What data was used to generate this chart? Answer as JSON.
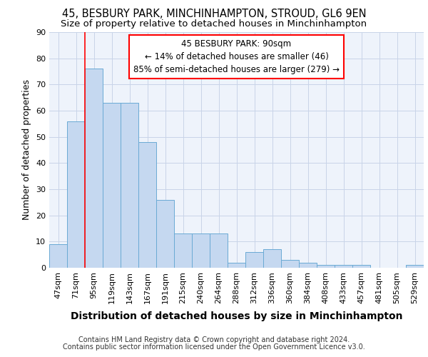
{
  "title1": "45, BESBURY PARK, MINCHINHAMPTON, STROUD, GL6 9EN",
  "title2": "Size of property relative to detached houses in Minchinhampton",
  "xlabel": "Distribution of detached houses by size in Minchinhampton",
  "ylabel": "Number of detached properties",
  "footer1": "Contains HM Land Registry data © Crown copyright and database right 2024.",
  "footer2": "Contains public sector information licensed under the Open Government Licence v3.0.",
  "categories": [
    "47sqm",
    "71sqm",
    "95sqm",
    "119sqm",
    "143sqm",
    "167sqm",
    "191sqm",
    "215sqm",
    "240sqm",
    "264sqm",
    "288sqm",
    "312sqm",
    "336sqm",
    "360sqm",
    "384sqm",
    "408sqm",
    "433sqm",
    "457sqm",
    "481sqm",
    "505sqm",
    "529sqm"
  ],
  "values": [
    9,
    56,
    76,
    63,
    63,
    48,
    26,
    13,
    13,
    13,
    2,
    6,
    7,
    3,
    2,
    1,
    1,
    1,
    0,
    0,
    1
  ],
  "bar_color": "#c5d8f0",
  "bar_edge_color": "#6aaad4",
  "annotation_line1": "45 BESBURY PARK: 90sqm",
  "annotation_line2": "← 14% of detached houses are smaller (46)",
  "annotation_line3": "85% of semi-detached houses are larger (279) →",
  "annotation_box_facecolor": "white",
  "annotation_box_edgecolor": "red",
  "vline_x_index": 2,
  "vline_color": "red",
  "ylim": [
    0,
    90
  ],
  "yticks": [
    0,
    10,
    20,
    30,
    40,
    50,
    60,
    70,
    80,
    90
  ],
  "bg_color": "white",
  "plot_bg_color": "#eef3fb",
  "grid_color": "#c8d4e8",
  "title1_fontsize": 10.5,
  "title2_fontsize": 9.5,
  "xlabel_fontsize": 10,
  "ylabel_fontsize": 9,
  "tick_fontsize": 8,
  "annotation_fontsize": 8.5,
  "footer_fontsize": 7
}
